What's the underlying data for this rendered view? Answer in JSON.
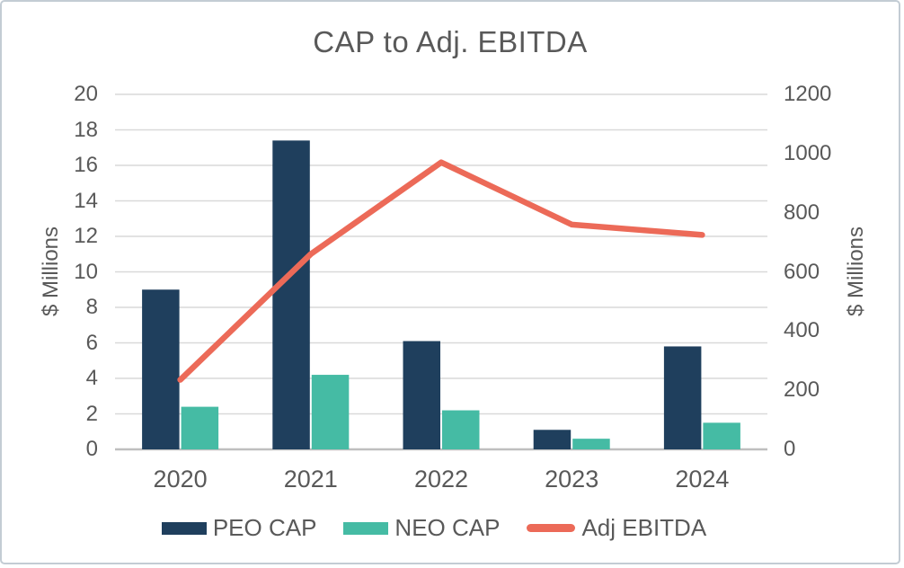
{
  "chart_data": {
    "type": "combo-bar-line",
    "title": "CAP to Adj. EBITDA",
    "categories": [
      "2020",
      "2021",
      "2022",
      "2023",
      "2024"
    ],
    "series": [
      {
        "name": "PEO CAP",
        "type": "bar",
        "axis": "left",
        "color": "#1f3f5d",
        "values": [
          9.0,
          17.4,
          6.1,
          1.1,
          5.8
        ]
      },
      {
        "name": "NEO CAP",
        "type": "bar",
        "axis": "left",
        "color": "#45bba4",
        "values": [
          2.4,
          4.2,
          2.2,
          0.6,
          1.5
        ]
      },
      {
        "name": "Adj EBITDA",
        "type": "line",
        "axis": "right",
        "color": "#ec6a58",
        "values": [
          235,
          660,
          970,
          760,
          725
        ]
      }
    ],
    "axis_left": {
      "label": "$ Millions",
      "min": 0,
      "max": 20,
      "step": 2
    },
    "axis_right": {
      "label": "$ Millions",
      "min": 0,
      "max": 1200,
      "step": 200
    },
    "grid": true,
    "legend_position": "bottom",
    "colors": {
      "gridline": "#d9d9d9",
      "axis_line": "#bfbfbf",
      "text": "#595959",
      "border": "#c3ccd4",
      "background": "#ffffff"
    }
  }
}
